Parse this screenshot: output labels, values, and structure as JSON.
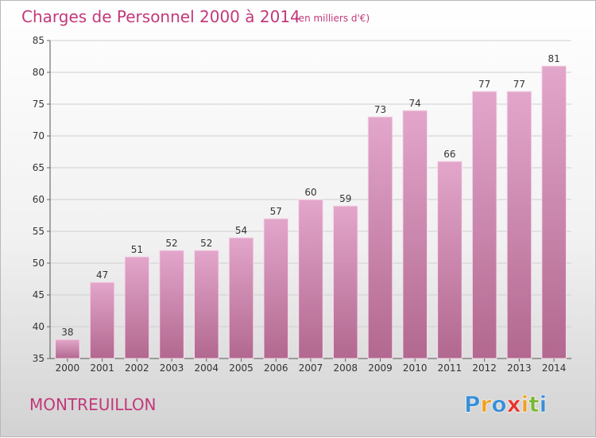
{
  "chart_data": {
    "type": "bar",
    "title": "Charges de Personnel 2000 à 2014",
    "subtitle": "(en milliers d'€)",
    "categories": [
      "2000",
      "2001",
      "2002",
      "2003",
      "2004",
      "2005",
      "2006",
      "2007",
      "2008",
      "2009",
      "2010",
      "2011",
      "2012",
      "2013",
      "2014"
    ],
    "values": [
      38,
      47,
      51,
      52,
      52,
      54,
      57,
      60,
      59,
      73,
      74,
      66,
      77,
      77,
      81
    ],
    "ylim": [
      35,
      85
    ],
    "yticks": [
      35,
      40,
      45,
      50,
      55,
      60,
      65,
      70,
      75,
      80,
      85
    ],
    "xlabel": "",
    "ylabel": "",
    "grid": true,
    "legend": "none",
    "bar_color_top": "#e3a6cb",
    "bar_color_bottom": "#b2688f",
    "title_color": "#c2397a"
  },
  "footer": {
    "location": "MONTREUILLON",
    "brand": {
      "letters": [
        "P",
        "r",
        "o",
        "x",
        "i",
        "t",
        "i"
      ],
      "colors": [
        "#3a8fd6",
        "#f0a020",
        "#3a8fd6",
        "#e8332a",
        "#f0a020",
        "#7ab830",
        "#3a8fd6"
      ]
    }
  }
}
